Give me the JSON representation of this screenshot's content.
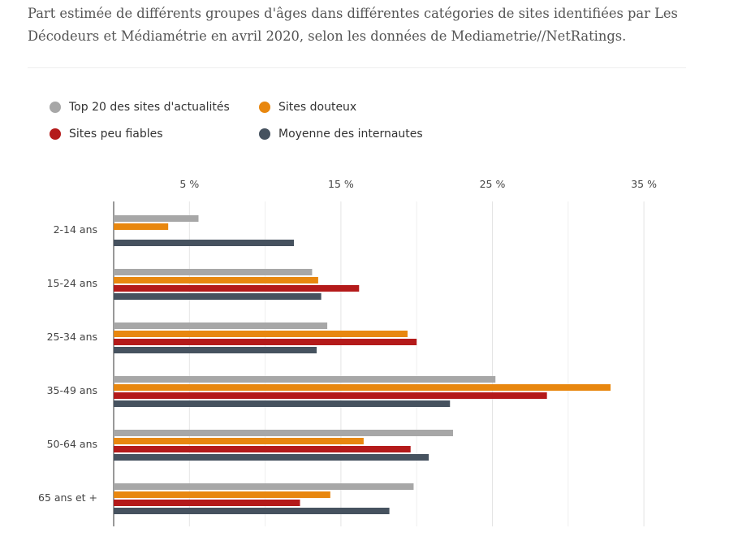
{
  "caption": "Part estimée de différents groupes d'âges dans différentes catégories de sites identifiées par Les Décodeurs et Médiamétrie en avril 2020, selon les données de Mediametrie//NetRatings.",
  "chart_data": {
    "type": "bar",
    "orientation": "horizontal",
    "title": "",
    "xlabel": "",
    "ylabel": "",
    "xlim": [
      0,
      37.5
    ],
    "ticks": [
      5,
      15,
      25,
      35
    ],
    "tick_labels": [
      "5 %",
      "15 %",
      "25 %",
      "35 %"
    ],
    "categories": [
      "2-14 ans",
      "15-24 ans",
      "25-34 ans",
      "35-49 ans",
      "50-64 ans",
      "65 ans et +"
    ],
    "legend_position": "top-left",
    "grid": true,
    "series": [
      {
        "name": "Top 20 des sites d'actualités",
        "color": "#a7a7a7",
        "values": [
          5.6,
          13.1,
          14.1,
          25.2,
          22.4,
          19.8
        ]
      },
      {
        "name": "Sites douteux",
        "color": "#e8870f",
        "values": [
          3.6,
          13.5,
          19.4,
          32.8,
          16.5,
          14.3
        ]
      },
      {
        "name": "Sites peu fiables",
        "color": "#b41a1a",
        "values": [
          0,
          16.2,
          20.0,
          28.6,
          19.6,
          12.3
        ]
      },
      {
        "name": "Moyenne des internautes",
        "color": "#46525f",
        "values": [
          11.9,
          13.7,
          13.4,
          22.2,
          20.8,
          18.2
        ]
      }
    ]
  }
}
